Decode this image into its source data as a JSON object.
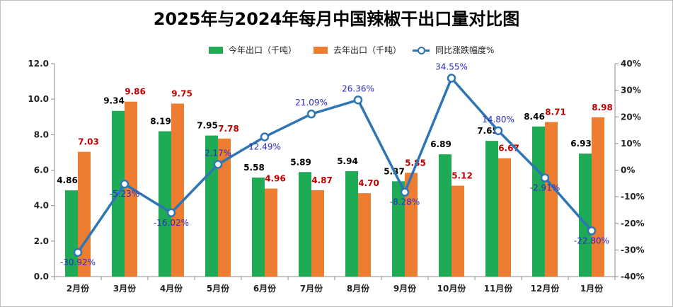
{
  "chart_data": {
    "type": "bar",
    "title": "2025年与2024年每月中国辣椒干出口量对比图",
    "categories": [
      "2月份",
      "3月份",
      "4月份",
      "5月份",
      "6月份",
      "7月份",
      "8月份",
      "9月份",
      "10月份",
      "11月份",
      "12月份",
      "1月份"
    ],
    "series": [
      {
        "name": "今年出口（千吨）",
        "type": "bar",
        "axis": "left",
        "color": "#1faa55",
        "label_color": "#000000",
        "values": [
          4.86,
          9.34,
          8.19,
          7.95,
          5.58,
          5.89,
          5.94,
          5.37,
          6.89,
          7.65,
          8.46,
          6.93
        ]
      },
      {
        "name": "去年出口（千吨）",
        "type": "bar",
        "axis": "left",
        "color": "#ed7d31",
        "label_color": "#c00000",
        "values": [
          7.03,
          9.86,
          9.75,
          7.78,
          4.96,
          4.87,
          4.7,
          5.85,
          5.12,
          6.67,
          8.71,
          8.98
        ]
      },
      {
        "name": "同比涨跌幅度%",
        "type": "line",
        "axis": "right",
        "color": "#2e75b6",
        "label_color": "#2b2bc0",
        "values": [
          -30.92,
          -5.23,
          -16.02,
          2.17,
          12.49,
          21.09,
          26.36,
          -8.28,
          34.55,
          14.8,
          -2.91,
          -22.8
        ],
        "labels": [
          "-30.92%",
          "-5.23%",
          "-16.02%",
          "2.17%",
          "12.49%",
          "21.09%",
          "26.36%",
          "-8.28%",
          "34.55%",
          "14.80%",
          "-2.91%",
          "-22.80%"
        ]
      }
    ],
    "y_left": {
      "min": 0,
      "max": 12,
      "ticks": [
        "0.0",
        "2.0",
        "4.0",
        "6.0",
        "8.0",
        "10.0",
        "12.0"
      ]
    },
    "y_right": {
      "min": -40,
      "max": 40,
      "ticks": [
        "-40%",
        "-30%",
        "-20%",
        "-10%",
        "0%",
        "10%",
        "20%",
        "30%",
        "40%"
      ]
    },
    "grid": false,
    "legend_position": "top"
  }
}
